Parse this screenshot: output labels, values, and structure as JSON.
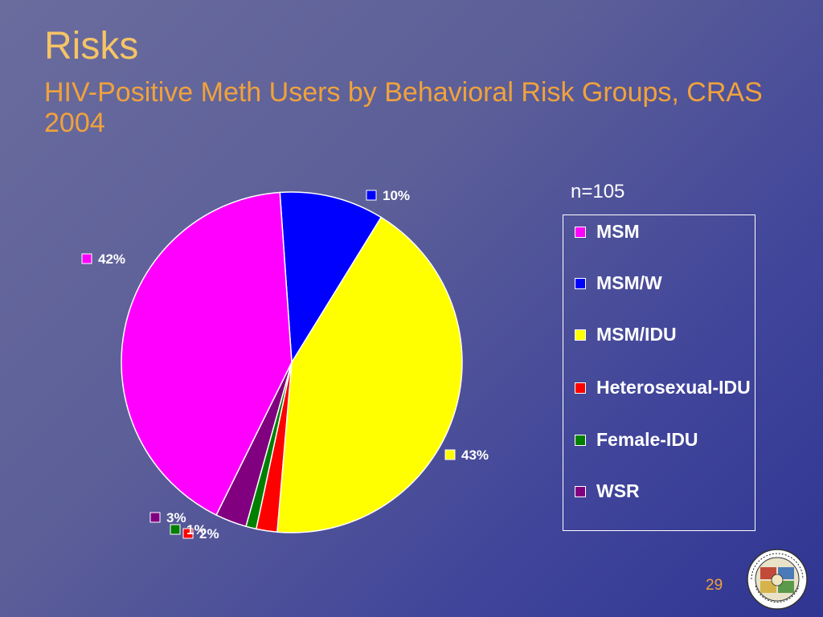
{
  "slide": {
    "title": "Risks",
    "subtitle": "HIV-Positive Meth Users by Behavioral Risk Groups, CRAS 2004",
    "sample_note": "n=105",
    "page_number": "29",
    "seal_text": "COUNTY OF LOS ANGELES · CALIFORNIA"
  },
  "chart_data": {
    "type": "pie",
    "title": "",
    "slices": [
      {
        "label": "MSM",
        "value": 42,
        "display": "42%",
        "color": "#ff00ff"
      },
      {
        "label": "MSM/W",
        "value": 10,
        "display": "10%",
        "color": "#0000ff"
      },
      {
        "label": "MSM/IDU",
        "value": 43,
        "display": "43%",
        "color": "#ffff00"
      },
      {
        "label": "Heterosexual-IDU",
        "value": 2,
        "display": "2%",
        "color": "#ff0000"
      },
      {
        "label": "Female-IDU",
        "value": 1,
        "display": "1%",
        "color": "#008000"
      },
      {
        "label": "WSR",
        "value": 3,
        "display": "3%",
        "color": "#800080"
      }
    ],
    "legend": {
      "placement": "right",
      "entries": [
        "MSM",
        "MSM/W",
        "MSM/IDU",
        "Heterosexual-IDU",
        "Female-IDU",
        "WSR"
      ]
    }
  }
}
